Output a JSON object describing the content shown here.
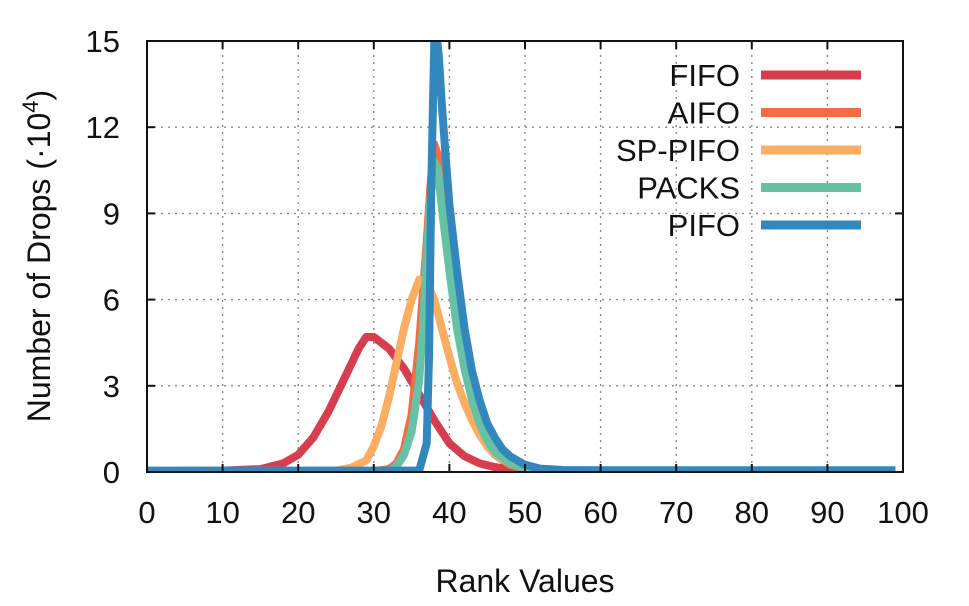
{
  "chart_data": {
    "type": "line",
    "title": "",
    "xlabel": "Rank Values",
    "ylabel": "Number of Drops",
    "ylabel_unit": "(·10",
    "ylabel_exponent": "4",
    "ylabel_close": ")",
    "xlim": [
      0,
      100
    ],
    "ylim": [
      0,
      15
    ],
    "xticks": [
      0,
      10,
      20,
      30,
      40,
      50,
      60,
      70,
      80,
      90,
      100
    ],
    "xtick_labels": [
      "0",
      "10",
      "20",
      "30",
      "40",
      "50",
      "60",
      "70",
      "80",
      "90",
      "100"
    ],
    "yticks": [
      0,
      3,
      6,
      9,
      12,
      15
    ],
    "ytick_labels": [
      "0",
      "3",
      "6",
      "9",
      "12",
      "15"
    ],
    "grid": true,
    "legend_position": "top-right",
    "series": [
      {
        "name": "FIFO",
        "color": "#d63e4f",
        "x": [
          0,
          10,
          15,
          18,
          20,
          22,
          24,
          26,
          28,
          29,
          30,
          32,
          34,
          36,
          38,
          40,
          42,
          44,
          46,
          48,
          50,
          52,
          55,
          60,
          70,
          80,
          90,
          99
        ],
        "y": [
          0.03,
          0.05,
          0.1,
          0.3,
          0.6,
          1.2,
          2.1,
          3.2,
          4.3,
          4.7,
          4.7,
          4.3,
          3.6,
          2.7,
          1.8,
          1.0,
          0.55,
          0.3,
          0.17,
          0.1,
          0.05,
          0.02,
          0.01,
          0.01,
          0.01,
          0.01,
          0.01,
          0.01
        ]
      },
      {
        "name": "AIFO",
        "color": "#f26d43",
        "x": [
          0,
          30,
          32,
          33,
          34,
          35,
          36,
          37,
          37.5,
          38,
          38.5,
          39,
          40,
          41,
          42,
          43,
          44,
          45,
          46,
          48,
          50,
          55,
          60,
          70,
          80,
          90,
          99
        ],
        "y": [
          0.03,
          0.03,
          0.1,
          0.3,
          0.8,
          2.0,
          4.5,
          8.0,
          10.0,
          11.4,
          11.0,
          9.8,
          7.5,
          5.5,
          3.8,
          2.5,
          1.6,
          1.0,
          0.6,
          0.25,
          0.1,
          0.03,
          0.02,
          0.02,
          0.02,
          0.02,
          0.02
        ]
      },
      {
        "name": "SP-PIFO",
        "color": "#fbae61",
        "x": [
          0,
          25,
          27,
          29,
          30,
          31,
          32,
          33,
          34,
          35,
          36,
          37,
          38,
          39,
          40,
          41,
          42,
          43,
          44,
          45,
          46,
          48,
          50,
          52,
          55,
          60,
          70,
          80,
          90,
          99
        ],
        "y": [
          0.03,
          0.05,
          0.15,
          0.4,
          0.9,
          1.6,
          2.6,
          3.8,
          5.0,
          6.0,
          6.7,
          6.6,
          6.0,
          5.0,
          4.0,
          3.1,
          2.4,
          1.8,
          1.3,
          0.9,
          0.6,
          0.3,
          0.12,
          0.05,
          0.03,
          0.02,
          0.02,
          0.02,
          0.02,
          0.02
        ]
      },
      {
        "name": "PACKS",
        "color": "#66c2a4",
        "x": [
          0,
          32,
          33,
          34,
          35,
          36,
          36.5,
          37,
          37.5,
          38,
          38.5,
          39,
          40,
          41,
          42,
          43,
          44,
          45,
          46,
          48,
          50,
          55,
          60,
          70,
          80,
          90,
          99
        ],
        "y": [
          0.03,
          0.03,
          0.2,
          0.6,
          1.4,
          3.2,
          5.0,
          7.5,
          9.5,
          10.8,
          10.5,
          9.2,
          7.0,
          5.0,
          3.6,
          2.5,
          1.7,
          1.1,
          0.7,
          0.3,
          0.12,
          0.04,
          0.03,
          0.03,
          0.03,
          0.03,
          0.03
        ]
      },
      {
        "name": "PIFO",
        "color": "#3288bd",
        "x": [
          0,
          36,
          37,
          37.3,
          37.6,
          38,
          38.3,
          38.6,
          39,
          39.5,
          40,
          41,
          42,
          43,
          44,
          45,
          46,
          47,
          48,
          50,
          52,
          55,
          60,
          70,
          80,
          90,
          99
        ],
        "y": [
          0.05,
          0.05,
          1.0,
          4.0,
          10.0,
          15.0,
          15.2,
          14.5,
          12.8,
          11.0,
          9.3,
          7.0,
          5.0,
          3.5,
          2.5,
          1.7,
          1.2,
          0.8,
          0.55,
          0.25,
          0.12,
          0.07,
          0.06,
          0.06,
          0.06,
          0.06,
          0.06
        ]
      }
    ]
  }
}
